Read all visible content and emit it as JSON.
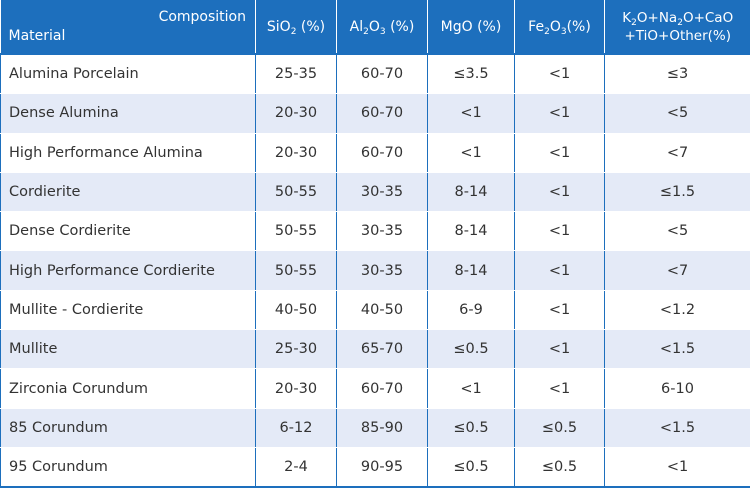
{
  "header": {
    "corner_top": "Composition",
    "corner_bottom": "Material",
    "sio2": {
      "pre": "SiO",
      "sub": "2",
      "post": " (%)"
    },
    "al2o3": {
      "pre": "Al",
      "sub1": "2",
      "mid": "O",
      "sub2": "3",
      "post": " (%)"
    },
    "mgo": "MgO (%)",
    "fe2o3": {
      "pre": "Fe",
      "sub1": "2",
      "mid": "O",
      "sub2": "3",
      "post": "(%)"
    },
    "other": {
      "l1_pre": "K",
      "l1_sub1": "2",
      "l1_mid": "O+Na",
      "l1_sub2": "2",
      "l1_post": "O+CaO",
      "l2": "+TiO+Other(%)"
    }
  },
  "rows": [
    {
      "material": "Alumina Porcelain",
      "sio2": "25-35",
      "al2o3": "60-70",
      "mgo": "≤3.5",
      "fe2o3": "<1",
      "other": "≤3"
    },
    {
      "material": "Dense Alumina",
      "sio2": "20-30",
      "al2o3": "60-70",
      "mgo": "<1",
      "fe2o3": "<1",
      "other": "<5"
    },
    {
      "material": "High Performance Alumina",
      "sio2": "20-30",
      "al2o3": "60-70",
      "mgo": "<1",
      "fe2o3": "<1",
      "other": "<7"
    },
    {
      "material": "Cordierite",
      "sio2": "50-55",
      "al2o3": "30-35",
      "mgo": "8-14",
      "fe2o3": "<1",
      "other": "≤1.5"
    },
    {
      "material": "Dense Cordierite",
      "sio2": "50-55",
      "al2o3": "30-35",
      "mgo": "8-14",
      "fe2o3": "<1",
      "other": "<5"
    },
    {
      "material": "High Performance Cordierite",
      "sio2": "50-55",
      "al2o3": "30-35",
      "mgo": "8-14",
      "fe2o3": "<1",
      "other": "<7"
    },
    {
      "material": "Mullite - Cordierite",
      "sio2": "40-50",
      "al2o3": "40-50",
      "mgo": "6-9",
      "fe2o3": "<1",
      "other": "<1.2"
    },
    {
      "material": "Mullite",
      "sio2": "25-30",
      "al2o3": "65-70",
      "mgo": "≤0.5",
      "fe2o3": "<1",
      "other": "<1.5"
    },
    {
      "material": "Zirconia Corundum",
      "sio2": "20-30",
      "al2o3": "60-70",
      "mgo": "<1",
      "fe2o3": "<1",
      "other": "6-10"
    },
    {
      "material": "85 Corundum",
      "sio2": "6-12",
      "al2o3": "85-90",
      "mgo": "≤0.5",
      "fe2o3": "≤0.5",
      "other": "<1.5"
    },
    {
      "material": "95 Corundum",
      "sio2": "2-4",
      "al2o3": "90-95",
      "mgo": "≤0.5",
      "fe2o3": "≤0.5",
      "other": "<1"
    }
  ],
  "colors": {
    "header_bg": "#1d6fbd",
    "row_alt": "#e4eaf7",
    "text": "#333333"
  }
}
